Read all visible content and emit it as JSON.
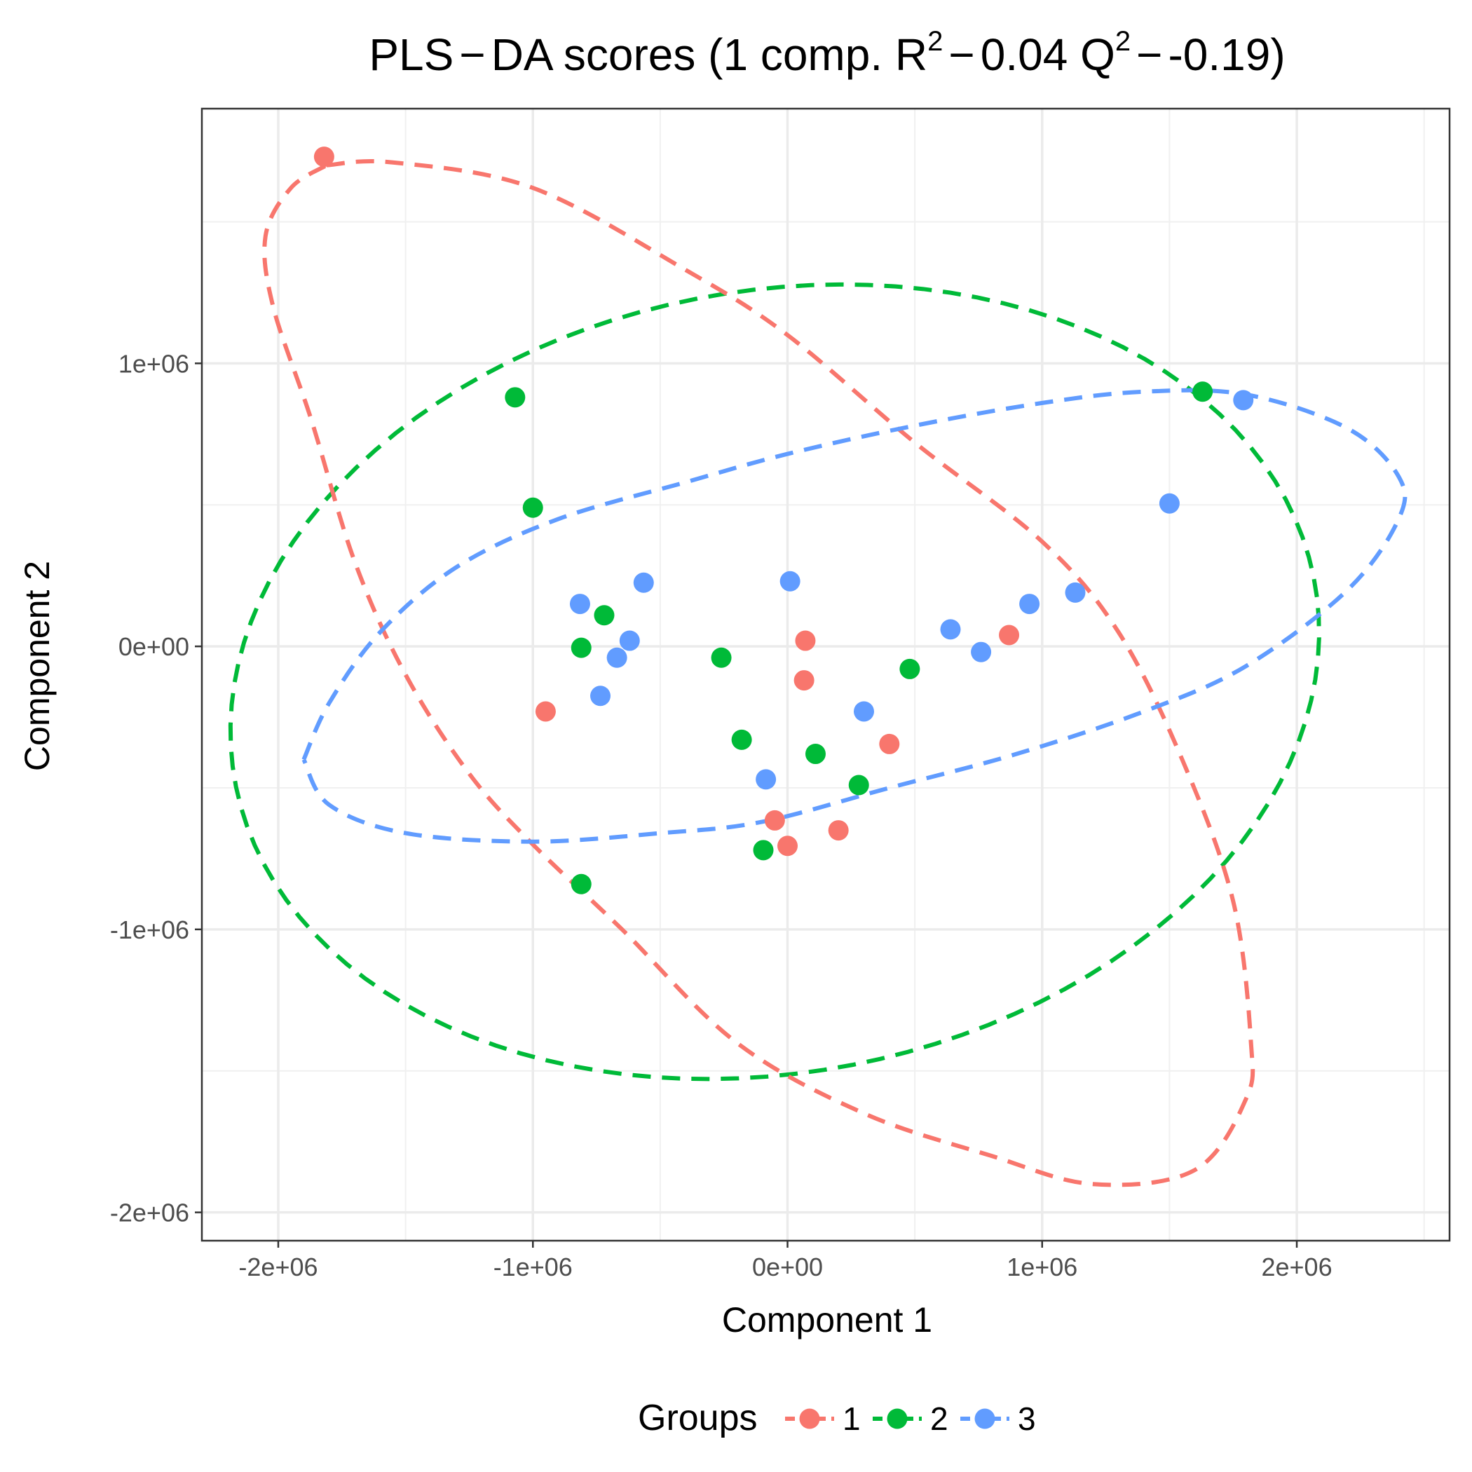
{
  "chart_data": {
    "type": "scatter",
    "title": {
      "prefix": "PLS",
      "minus1": "−",
      "mid": "DA scores (1 comp. R",
      "sup1": "2",
      "minus2": "−",
      "mid2": "0.04 Q",
      "sup2": "2",
      "minus3": "−",
      "tail": "-0.19)"
    },
    "xlabel": "Component 1",
    "ylabel": "Component 2",
    "xlim": [
      -2300000,
      2600000
    ],
    "ylim": [
      -2100000,
      1900000
    ],
    "x_ticks": [
      {
        "value": -2000000,
        "label": "-2e+06"
      },
      {
        "value": -1000000,
        "label": "-1e+06"
      },
      {
        "value": 0,
        "label": "0e+00"
      },
      {
        "value": 1000000,
        "label": "1e+06"
      },
      {
        "value": 2000000,
        "label": "2e+06"
      }
    ],
    "y_ticks": [
      {
        "value": -2000000,
        "label": "-2e+06"
      },
      {
        "value": -1000000,
        "label": "-1e+06"
      },
      {
        "value": 0,
        "label": "0e+00"
      },
      {
        "value": 1000000,
        "label": "1e+06"
      }
    ],
    "grid": true,
    "legend": {
      "title": "Groups",
      "position": "bottom"
    },
    "series": [
      {
        "name": "1",
        "color": "#F8766D",
        "points": [
          [
            -1820000,
            1730000
          ],
          [
            -950000,
            -230000
          ],
          [
            70000,
            20000
          ],
          [
            65000,
            -120000
          ],
          [
            870000,
            40000
          ],
          [
            400000,
            -345000
          ],
          [
            -50000,
            -615000
          ],
          [
            200000,
            -650000
          ],
          [
            0,
            -705000
          ]
        ],
        "ellipse": [
          [
            -1810000,
            1700000
          ],
          [
            -1550000,
            1710000
          ],
          [
            -1000000,
            1620000
          ],
          [
            -400000,
            1330000
          ],
          [
            0,
            1100000
          ],
          [
            500000,
            720000
          ],
          [
            1000000,
            370000
          ],
          [
            1300000,
            50000
          ],
          [
            1550000,
            -400000
          ],
          [
            1750000,
            -900000
          ],
          [
            1820000,
            -1400000
          ],
          [
            1800000,
            -1600000
          ],
          [
            1600000,
            -1850000
          ],
          [
            1200000,
            -1900000
          ],
          [
            800000,
            -1800000
          ],
          [
            300000,
            -1650000
          ],
          [
            -200000,
            -1400000
          ],
          [
            -650000,
            -1000000
          ],
          [
            -1000000,
            -700000
          ],
          [
            -1250000,
            -450000
          ],
          [
            -1500000,
            -100000
          ],
          [
            -1700000,
            300000
          ],
          [
            -1870000,
            800000
          ],
          [
            -2020000,
            1200000
          ],
          [
            -2050000,
            1450000
          ],
          [
            -1950000,
            1620000
          ],
          [
            -1810000,
            1700000
          ]
        ]
      },
      {
        "name": "2",
        "color": "#00BA38",
        "points": [
          [
            -1070000,
            880000
          ],
          [
            -1000000,
            490000
          ],
          [
            -720000,
            110000
          ],
          [
            -810000,
            -5000
          ],
          [
            -260000,
            -40000
          ],
          [
            -180000,
            -330000
          ],
          [
            110000,
            -380000
          ],
          [
            480000,
            -80000
          ],
          [
            280000,
            -490000
          ],
          [
            -95000,
            -720000
          ],
          [
            -810000,
            -840000
          ],
          [
            1630000,
            900000
          ]
        ]
      },
      {
        "name": "3",
        "color": "#619CFF",
        "points": [
          [
            -815000,
            150000
          ],
          [
            -565000,
            225000
          ],
          [
            -620000,
            20000
          ],
          [
            -670000,
            -40000
          ],
          [
            -735000,
            -175000
          ],
          [
            10000,
            230000
          ],
          [
            300000,
            -230000
          ],
          [
            -85000,
            -470000
          ],
          [
            640000,
            60000
          ],
          [
            760000,
            -20000
          ],
          [
            950000,
            150000
          ],
          [
            1130000,
            190000
          ],
          [
            1500000,
            505000
          ],
          [
            1790000,
            870000
          ]
        ],
        "ellipse": [
          [
            -1900000,
            -400000
          ],
          [
            -1800000,
            -200000
          ],
          [
            -1600000,
            50000
          ],
          [
            -1300000,
            280000
          ],
          [
            -900000,
            450000
          ],
          [
            -400000,
            580000
          ],
          [
            0,
            680000
          ],
          [
            500000,
            780000
          ],
          [
            1000000,
            860000
          ],
          [
            1400000,
            900000
          ],
          [
            1800000,
            890000
          ],
          [
            2200000,
            770000
          ],
          [
            2400000,
            600000
          ],
          [
            2400000,
            450000
          ],
          [
            2200000,
            200000
          ],
          [
            1800000,
            -70000
          ],
          [
            1400000,
            -230000
          ],
          [
            900000,
            -380000
          ],
          [
            400000,
            -500000
          ],
          [
            -100000,
            -620000
          ],
          [
            -500000,
            -660000
          ],
          [
            -1000000,
            -690000
          ],
          [
            -1500000,
            -660000
          ],
          [
            -1800000,
            -560000
          ],
          [
            -1900000,
            -400000
          ]
        ]
      }
    ],
    "green_ellipse": {
      "cx": -50000,
      "cy": -125000,
      "rx": 2150000,
      "ry": 1385000,
      "angle_deg": 8
    }
  }
}
